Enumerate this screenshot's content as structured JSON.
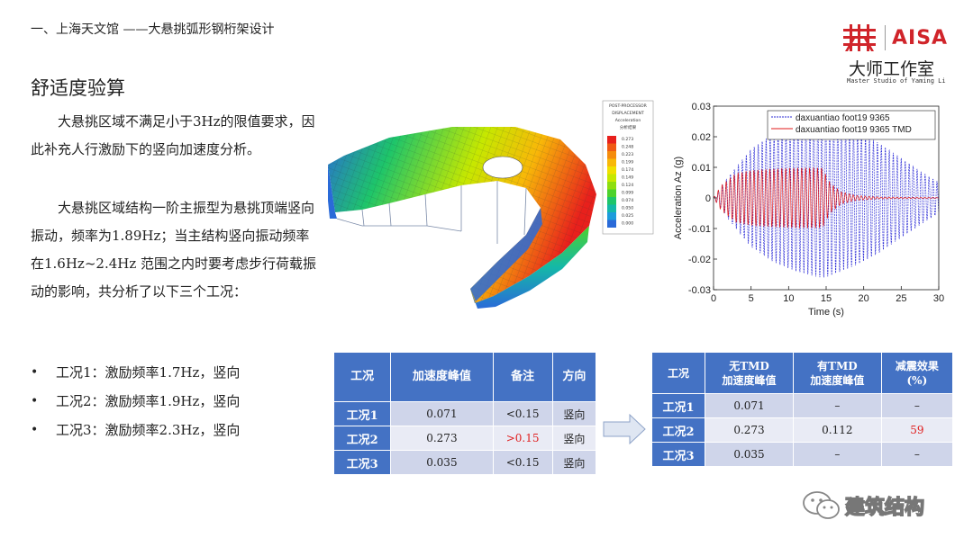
{
  "header": {
    "title": "一、上海天文馆 ——大悬挑弧形钢桁架设计"
  },
  "logo": {
    "brand": "ΑISΑ",
    "cn_name": "大师工作室",
    "en_name": "Master Studio of Yaming Li"
  },
  "section_title": "舒适度验算",
  "paragraphs": [
    "大悬挑区域不满足小于3Hz的限值要求，因此补充人行激励下的竖向加速度分析。",
    "大悬挑区域结构一阶主振型为悬挑顶端竖向振动，频率为1.89Hz；当主结构竖向振动频率在1.6Hz~2.4Hz 范围之内时要考虑步行荷载振动的影响，共分析了以下三个工况："
  ],
  "bullets": [
    "工况1：激励频率1.7Hz，竖向",
    "工况2：激励频率1.9Hz，竖向",
    "工况3：激励频率2.3Hz，竖向"
  ],
  "fea_legend": {
    "header_lines": [
      "POST-PROCESSOR",
      "DISPLACEMENT",
      "Acceleration",
      "分析结果"
    ],
    "values": [
      "0.273",
      "0.248",
      "0.223",
      "0.199",
      "0.174",
      "0.149",
      "0.124",
      "0.099",
      "0.074",
      "0.050",
      "0.025",
      "0.000"
    ],
    "colors": [
      "#e8201c",
      "#f05a14",
      "#f58c0c",
      "#f8b808",
      "#f0e000",
      "#c6e800",
      "#8ede0e",
      "#4cd22c",
      "#1ec56a",
      "#14b8a8",
      "#1c9cdc",
      "#2a6ad8"
    ]
  },
  "chart_data": {
    "type": "line",
    "xlabel": "Time (s)",
    "ylabel": "Acceleration Az (g)",
    "xlim": [
      0,
      30
    ],
    "ylim": [
      -0.03,
      0.03
    ],
    "xticks": [
      0,
      5,
      10,
      15,
      20,
      25,
      30
    ],
    "yticks": [
      0.03,
      0.02,
      0.01,
      0,
      -0.01,
      -0.02,
      -0.03
    ],
    "ytick_labels": [
      "0.03",
      "0.02",
      "0.01",
      "0",
      "-0.01",
      "-0.02",
      "-0.03"
    ],
    "legend_position": "top-right",
    "series": [
      {
        "name": "daxuantiao foot19 9365",
        "color": "#2b2bd6",
        "style": "dashed",
        "envelope": [
          [
            0,
            0.0
          ],
          [
            2,
            0.007
          ],
          [
            5,
            0.016
          ],
          [
            8,
            0.021
          ],
          [
            11,
            0.024
          ],
          [
            14,
            0.026
          ],
          [
            15,
            0.026
          ],
          [
            16,
            0.025
          ],
          [
            19,
            0.022
          ],
          [
            22,
            0.018
          ],
          [
            25,
            0.013
          ],
          [
            28,
            0.008
          ],
          [
            30,
            0.005
          ]
        ]
      },
      {
        "name": "daxuantiao foot19 9365 TMD",
        "color": "#e01818",
        "style": "solid",
        "envelope": [
          [
            0,
            0.0
          ],
          [
            1,
            0.004
          ],
          [
            3,
            0.008
          ],
          [
            5,
            0.009
          ],
          [
            8,
            0.0095
          ],
          [
            11,
            0.0098
          ],
          [
            14.5,
            0.0098
          ],
          [
            15.5,
            0.005
          ],
          [
            17,
            0.002
          ],
          [
            19,
            0.0008
          ],
          [
            22,
            0.0003
          ],
          [
            30,
            0.0001
          ]
        ]
      }
    ]
  },
  "table1": {
    "headers": [
      "工况",
      "加速度峰值",
      "备注",
      "方向"
    ],
    "rows": [
      [
        "工况1",
        "0.071",
        "<0.15",
        "竖向"
      ],
      [
        "工况2",
        "0.273",
        ">0.15",
        "竖向"
      ],
      [
        "工况3",
        "0.035",
        "<0.15",
        "竖向"
      ]
    ],
    "highlight_color": "#e02020"
  },
  "table2": {
    "headers": [
      "工况",
      "无TMD 加速度峰值",
      "有TMD 加速度峰值",
      "减震效果 (%)"
    ],
    "header_lines": [
      [
        "工况"
      ],
      [
        "无TMD",
        "加速度峰值"
      ],
      [
        "有TMD",
        "加速度峰值"
      ],
      [
        "减震效果",
        "(%)"
      ]
    ],
    "rows": [
      [
        "工况1",
        "0.071",
        "–",
        "–"
      ],
      [
        "工况2",
        "0.273",
        "0.112",
        "59"
      ],
      [
        "工况3",
        "0.035",
        "–",
        "–"
      ]
    ]
  },
  "watermark": {
    "text": "建筑结构"
  }
}
